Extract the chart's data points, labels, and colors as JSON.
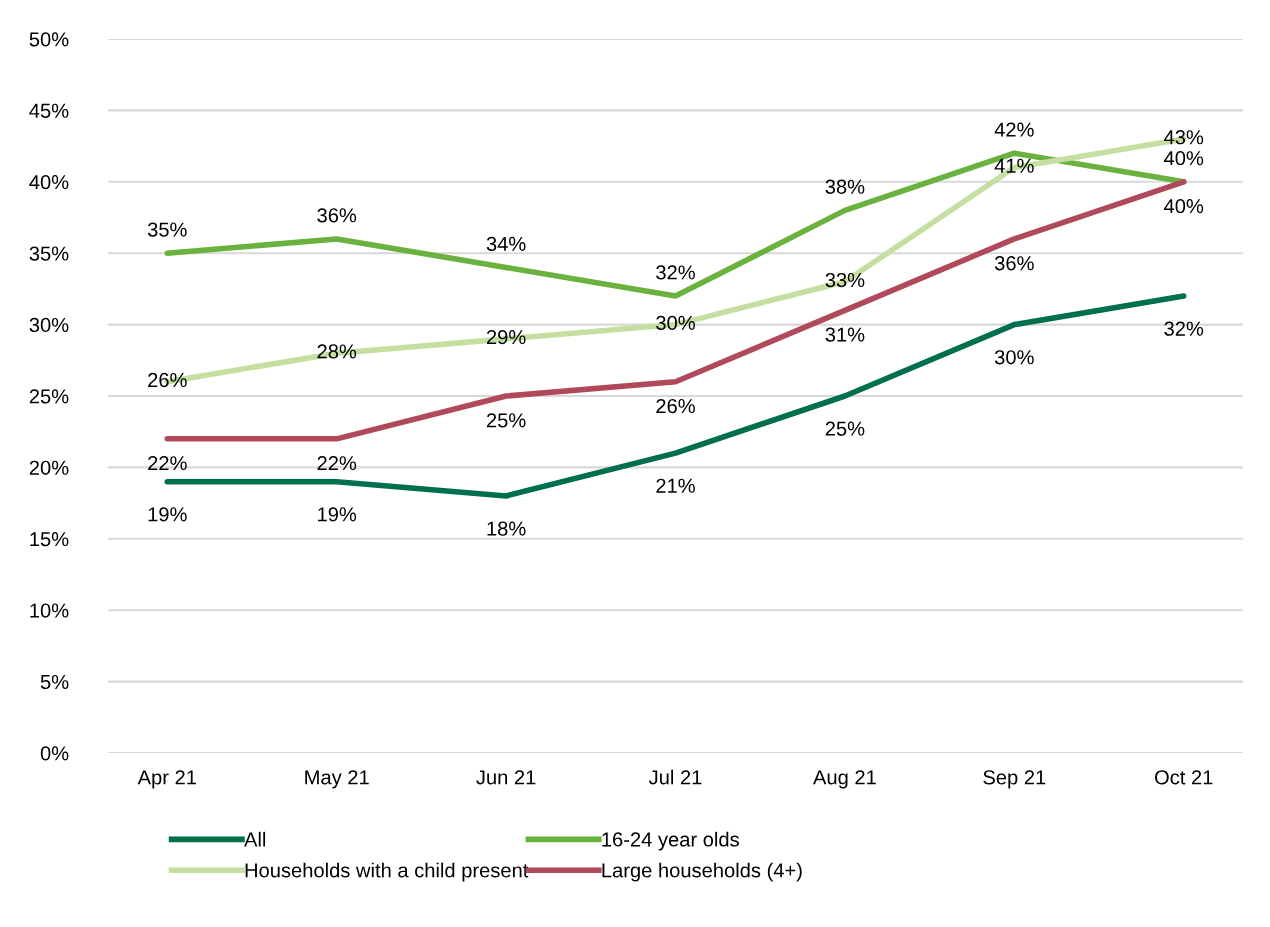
{
  "chart_data": {
    "type": "line",
    "categories": [
      "Apr 21",
      "May 21",
      "Jun 21",
      "Jul 21",
      "Aug 21",
      "Sep 21",
      "Oct 21"
    ],
    "series": [
      {
        "name": "All",
        "color": "#006f4e",
        "values": [
          19,
          19,
          18,
          21,
          25,
          30,
          32
        ],
        "value_labels": [
          "19%",
          "19%",
          "18%",
          "21%",
          "25%",
          "30%",
          "32%"
        ]
      },
      {
        "name": "16-24 year olds",
        "color": "#6ab23e",
        "values": [
          35,
          36,
          34,
          32,
          38,
          42,
          40
        ],
        "value_labels": [
          "35%",
          "36%",
          "34%",
          "32%",
          "38%",
          "42%",
          "40%"
        ]
      },
      {
        "name": "Households with a child present",
        "color": "#c5dfa0",
        "values": [
          26,
          28,
          29,
          30,
          33,
          41,
          43
        ],
        "value_labels": [
          "26%",
          "28%",
          "29%",
          "30%",
          "33%",
          "41%",
          "43%"
        ]
      },
      {
        "name": "Large households (4+)",
        "color": "#b04a5a",
        "values": [
          22,
          22,
          25,
          26,
          31,
          36,
          40
        ],
        "value_labels": [
          "22%",
          "22%",
          "25%",
          "26%",
          "31%",
          "36%",
          "40%"
        ]
      }
    ],
    "ylim": [
      0,
      50
    ],
    "yticks": [
      {
        "value": 0,
        "label": "0%"
      },
      {
        "value": 5,
        "label": "5%"
      },
      {
        "value": 10,
        "label": "10%"
      },
      {
        "value": 15,
        "label": "15%"
      },
      {
        "value": 20,
        "label": "20%"
      },
      {
        "value": 25,
        "label": "25%"
      },
      {
        "value": 30,
        "label": "30%"
      },
      {
        "value": 35,
        "label": "35%"
      },
      {
        "value": 40,
        "label": "40%"
      },
      {
        "value": 45,
        "label": "45%"
      },
      {
        "value": 50,
        "label": "50%"
      }
    ],
    "grid": "y",
    "legend": "bottom",
    "marker": "none",
    "line_style": "solid"
  }
}
